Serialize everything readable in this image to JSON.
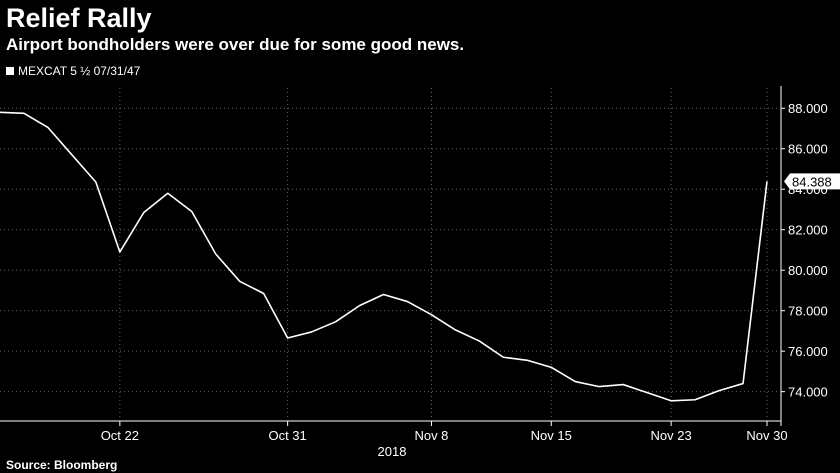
{
  "header": {
    "title": "Relief Rally",
    "subtitle": "Airport bondholders were over due for some good news."
  },
  "source": "Source: Bloomberg",
  "colors": {
    "background": "#000000",
    "line": "#ffffff",
    "text": "#ffffff",
    "grid": "#666666"
  },
  "chart_data": {
    "type": "line",
    "title": "Relief Rally",
    "subtitle": "Airport bondholders were over due for some good news.",
    "xlabel": "2018",
    "ylabel": "",
    "legend": {
      "placement": "top-left",
      "entries": [
        "MEXCAT 5 ½ 07/31/47"
      ]
    },
    "grid": {
      "horizontal": true,
      "vertical": true,
      "style": "dotted"
    },
    "ylim": [
      72.6,
      89.0
    ],
    "y_ticks": [
      {
        "value": 74,
        "label": "74.000"
      },
      {
        "value": 76,
        "label": "76.000"
      },
      {
        "value": 78,
        "label": "78.000"
      },
      {
        "value": 80,
        "label": "80.000"
      },
      {
        "value": 82,
        "label": "82.000"
      },
      {
        "value": 84,
        "label": "84.000"
      },
      {
        "value": 86,
        "label": "86.000"
      },
      {
        "value": 88,
        "label": "88.000"
      }
    ],
    "x_ticks": [
      {
        "date": "2018-10-22",
        "label": "Oct 22"
      },
      {
        "date": "2018-10-31",
        "label": "Oct 31"
      },
      {
        "date": "2018-11-08",
        "label": "Nov 8"
      },
      {
        "date": "2018-11-15",
        "label": "Nov 15"
      },
      {
        "date": "2018-11-23",
        "label": "Nov 23"
      },
      {
        "date": "2018-11-30",
        "label": "Nov 30"
      }
    ],
    "last_value": {
      "value": 84.388,
      "label": "84.388"
    },
    "series": [
      {
        "name": "MEXCAT 5 ½ 07/31/47",
        "points": [
          {
            "date": "2018-10-15",
            "y": 87.8
          },
          {
            "date": "2018-10-16",
            "y": 87.75
          },
          {
            "date": "2018-10-17",
            "y": 87.05
          },
          {
            "date": "2018-10-18",
            "y": 85.7
          },
          {
            "date": "2018-10-19",
            "y": 84.35
          },
          {
            "date": "2018-10-22",
            "y": 80.9
          },
          {
            "date": "2018-10-23",
            "y": 82.85
          },
          {
            "date": "2018-10-24",
            "y": 83.8
          },
          {
            "date": "2018-10-25",
            "y": 82.9
          },
          {
            "date": "2018-10-26",
            "y": 80.8
          },
          {
            "date": "2018-10-29",
            "y": 79.45
          },
          {
            "date": "2018-10-30",
            "y": 78.85
          },
          {
            "date": "2018-10-31",
            "y": 76.65
          },
          {
            "date": "2018-11-01",
            "y": 76.95
          },
          {
            "date": "2018-11-02",
            "y": 77.45
          },
          {
            "date": "2018-11-05",
            "y": 78.25
          },
          {
            "date": "2018-11-06",
            "y": 78.8
          },
          {
            "date": "2018-11-07",
            "y": 78.45
          },
          {
            "date": "2018-11-08",
            "y": 77.8
          },
          {
            "date": "2018-11-09",
            "y": 77.05
          },
          {
            "date": "2018-11-12",
            "y": 76.5
          },
          {
            "date": "2018-11-13",
            "y": 75.7
          },
          {
            "date": "2018-11-14",
            "y": 75.55
          },
          {
            "date": "2018-11-15",
            "y": 75.2
          },
          {
            "date": "2018-11-16",
            "y": 74.5
          },
          {
            "date": "2018-11-19",
            "y": 74.25
          },
          {
            "date": "2018-11-20",
            "y": 74.35
          },
          {
            "date": "2018-11-21",
            "y": 73.95
          },
          {
            "date": "2018-11-23",
            "y": 73.55
          },
          {
            "date": "2018-11-26",
            "y": 73.6
          },
          {
            "date": "2018-11-27",
            "y": 74.05
          },
          {
            "date": "2018-11-28",
            "y": 74.4
          },
          {
            "date": "2018-11-29",
            "y": 84.388
          }
        ]
      }
    ]
  }
}
